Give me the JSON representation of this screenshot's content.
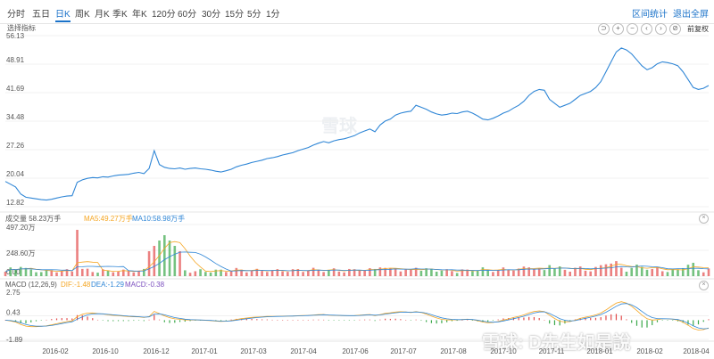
{
  "tabs": [
    "分时",
    "五日",
    "日K",
    "周K",
    "月K",
    "季K",
    "年K",
    "120分",
    "60分",
    "30分",
    "15分",
    "5分",
    "1分"
  ],
  "active_tab": "日K",
  "right_links": {
    "interval_stats": "区间统计",
    "exit_fullscreen": "退出全屏"
  },
  "indicator_label": "选择指标",
  "restore_label": "前复权",
  "controls": [
    "⊃",
    "+",
    "−",
    "‹",
    "›",
    "⊘"
  ],
  "volume_panel": {
    "label": "成交量 58.23万手",
    "ma5": "MA5:49.27万手",
    "ma10": "MA10:58.98万手",
    "ticks": [
      "497.20万",
      "248.60万",
      "0.00"
    ]
  },
  "macd_panel": {
    "label": "MACD (12,26,9)",
    "dif": "DIF:-1.48",
    "dea": "DEA:-1.29",
    "macd": "MACD:-0.38",
    "ticks": [
      "2.75",
      "0.43",
      "-1.89"
    ]
  },
  "watermark": "雪球",
  "watermark_bottom": "雪球: D先生如是說",
  "colors": {
    "price": "#2f86d6",
    "ma5": "#f5a623",
    "ma10": "#2f86d6",
    "up": "#e24a4a",
    "down": "#3aa84a"
  },
  "chart_data": {
    "type": "line",
    "y_ticks": [
      "56.13",
      "48.91",
      "41.69",
      "34.48",
      "27.26",
      "20.04",
      "12.82"
    ],
    "ylim": [
      12.82,
      56.13
    ],
    "x_ticks": [
      "2016-02",
      "2016-10",
      "2016-12",
      "2017-01",
      "2017-03",
      "2017-04",
      "2017-06",
      "2017-07",
      "2017-08",
      "2017-10",
      "2017-11",
      "2018-01",
      "2018-02",
      "2018-04"
    ],
    "series": [
      {
        "values": [
          19.2,
          18.5,
          17.8,
          16.0,
          15.2,
          15.0,
          14.8,
          14.6,
          14.5,
          14.7,
          15.0,
          15.3,
          15.5,
          15.6,
          19.0,
          19.6,
          20.0,
          20.2,
          20.1,
          20.4,
          20.3,
          20.6,
          20.8,
          20.9,
          21.0,
          21.3,
          21.5,
          21.2,
          22.5,
          27.0,
          23.5,
          22.8,
          22.5,
          22.4,
          22.6,
          22.3,
          22.5,
          22.6,
          22.4,
          22.3,
          22.1,
          21.8,
          21.6,
          21.9,
          22.3,
          22.9,
          23.3,
          23.6,
          24.0,
          24.3,
          24.6,
          25.0,
          25.2,
          25.5,
          25.9,
          26.2,
          26.5,
          27.0,
          27.4,
          27.8,
          28.4,
          28.9,
          29.3,
          29.0,
          29.5,
          29.8,
          30.0,
          30.4,
          30.8,
          31.5,
          32.0,
          32.5,
          31.8,
          33.5,
          34.5,
          35.0,
          36.0,
          36.5,
          36.8,
          37.0,
          38.5,
          38.0,
          37.5,
          36.8,
          36.3,
          36.0,
          36.2,
          36.5,
          36.4,
          36.8,
          37.0,
          36.5,
          35.8,
          35.0,
          34.8,
          35.2,
          35.8,
          36.5,
          37.0,
          37.8,
          38.5,
          39.5,
          41.0,
          42.0,
          42.5,
          42.3,
          40.0,
          39.0,
          38.0,
          38.5,
          39.0,
          40.0,
          41.0,
          41.5,
          42.0,
          43.0,
          44.5,
          47.0,
          49.5,
          52.0,
          53.0,
          52.5,
          51.5,
          50.0,
          48.5,
          47.5,
          48.0,
          49.0,
          49.5,
          49.3,
          49.0,
          48.5,
          47.0,
          45.0,
          43.0,
          42.5,
          42.8,
          43.5
        ]
      }
    ]
  }
}
